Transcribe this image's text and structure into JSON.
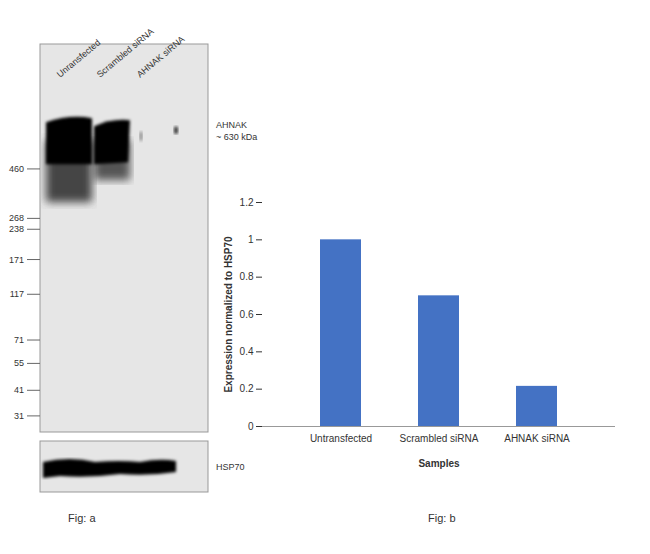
{
  "blot": {
    "lanes": [
      "Unransfected",
      "Scrambled siRNA",
      "AHNAK siRNA"
    ],
    "markers": {
      "log": true,
      "ylim": [
        26,
        1800
      ],
      "yticks": [
        460,
        268,
        238,
        171,
        117,
        71,
        55,
        41,
        31
      ]
    },
    "target": {
      "name": "AHNAK",
      "label": "~ 630 kDa",
      "kda": 630
    },
    "loading_control": "HSP70",
    "caption": "Fig: a"
  },
  "chart_data": {
    "type": "bar",
    "categories": [
      "Untransfected",
      "Scrambled siRNA",
      "AHNAK siRNA"
    ],
    "values": [
      1,
      0.7,
      0.215
    ],
    "color": "#4472c4",
    "ylim": [
      0,
      1.2
    ],
    "yticks": [
      0,
      0.2,
      0.4,
      0.6,
      0.8,
      1,
      1.2
    ],
    "y_label": "Expression normalized to HSP70",
    "x_label": "Samples",
    "grid": false,
    "caption": "Fig: b"
  }
}
